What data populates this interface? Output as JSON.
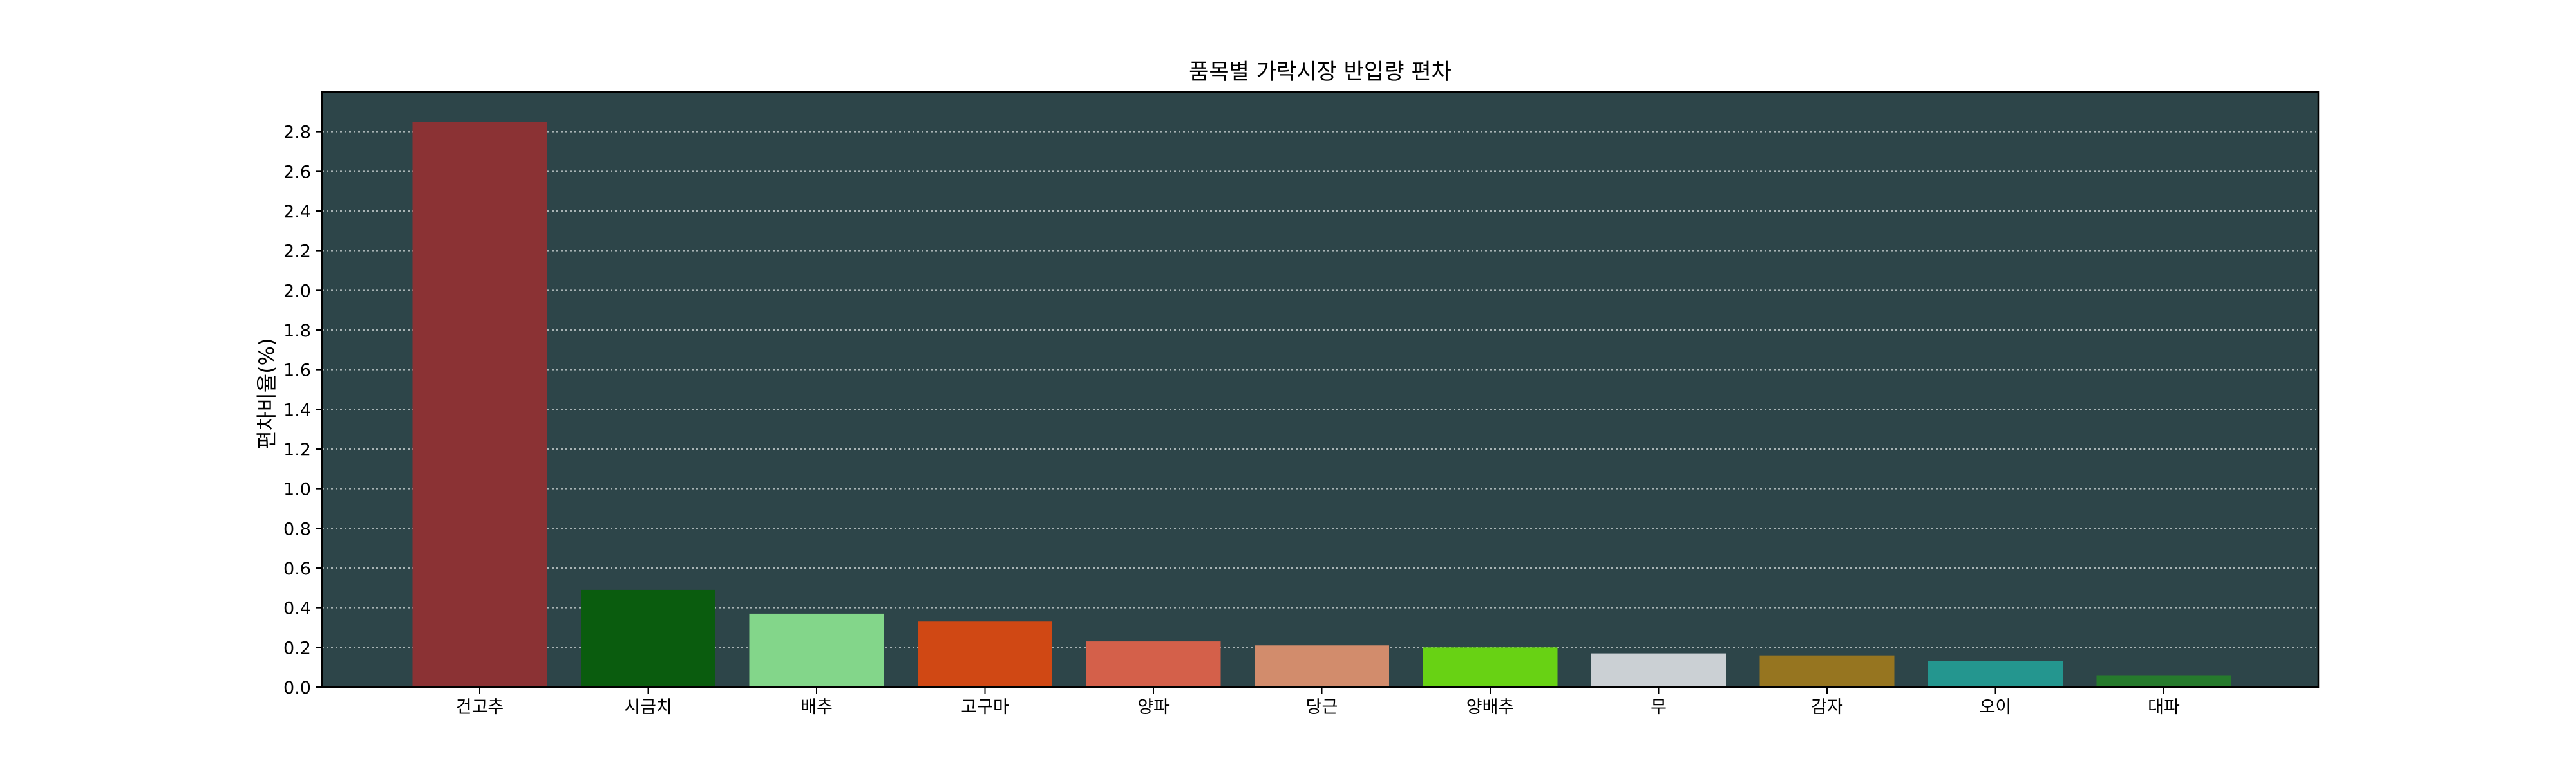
{
  "chart_data": {
    "type": "bar",
    "title": "품목별 가락시장 반입량 편차",
    "xlabel": "",
    "ylabel": "편차비율(%)",
    "categories": [
      "건고추",
      "시금치",
      "배추",
      "고구마",
      "양파",
      "당근",
      "양배추",
      "무",
      "감자",
      "오이",
      "대파"
    ],
    "values": [
      2.85,
      0.49,
      0.37,
      0.33,
      0.23,
      0.21,
      0.2,
      0.17,
      0.16,
      0.13,
      0.06
    ],
    "bar_colors": [
      "#8b3234",
      "#0a5c0e",
      "#83d68a",
      "#d04814",
      "#d4604a",
      "#d28c6c",
      "#68d214",
      "#cbd0d4",
      "#967520",
      "#24968f",
      "#267a2c"
    ],
    "ylim": [
      0,
      3.0
    ],
    "yticks": [
      0.0,
      0.2,
      0.4,
      0.6,
      0.8,
      1.0,
      1.2,
      1.4,
      1.6,
      1.8,
      2.0,
      2.2,
      2.4,
      2.6,
      2.8
    ],
    "grid": {
      "axis": "y",
      "style": "dotted",
      "color": "#bfc8c8"
    },
    "plot_background": "#2d4549",
    "legend": "none"
  }
}
